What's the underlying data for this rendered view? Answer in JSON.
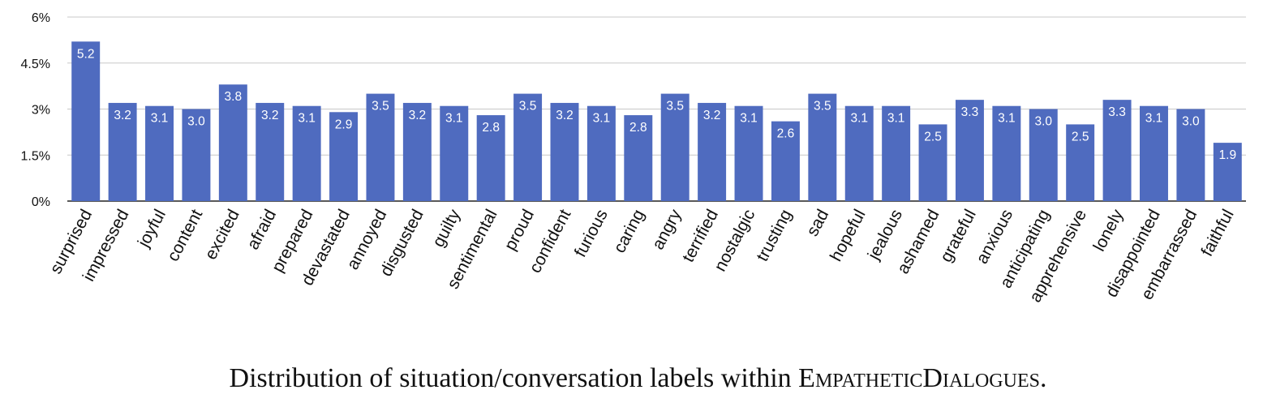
{
  "chart_data": {
    "type": "bar",
    "categories": [
      "surprised",
      "impressed",
      "joyful",
      "content",
      "excited",
      "afraid",
      "prepared",
      "devastated",
      "annoyed",
      "disgusted",
      "guilty",
      "sentimental",
      "proud",
      "confident",
      "furious",
      "caring",
      "angry",
      "terrified",
      "nostalgic",
      "trusting",
      "sad",
      "hopeful",
      "jealous",
      "ashamed",
      "grateful",
      "anxious",
      "anticipating",
      "apprehensive",
      "lonely",
      "disappointed",
      "embarrassed",
      "faithful"
    ],
    "values": [
      5.2,
      3.2,
      3.1,
      3.0,
      3.8,
      3.2,
      3.1,
      2.9,
      3.5,
      3.2,
      3.1,
      2.8,
      3.5,
      3.2,
      3.1,
      2.8,
      3.5,
      3.2,
      3.1,
      2.6,
      3.5,
      3.1,
      3.1,
      2.5,
      3.3,
      3.1,
      3.0,
      2.5,
      3.3,
      3.1,
      3.0,
      1.9
    ],
    "data_labels": [
      "5.2",
      "3.2",
      "3.1",
      "3.0",
      "3.8",
      "3.2",
      "3.1",
      "2.9",
      "3.5",
      "3.2",
      "3.1",
      "2.8",
      "3.5",
      "3.2",
      "3.1",
      "2.8",
      "3.5",
      "3.2",
      "3.1",
      "2.6",
      "3.5",
      "3.1",
      "3.1",
      "2.5",
      "3.3",
      "3.1",
      "3.0",
      "2.5",
      "3.3",
      "3.1",
      "3.0",
      "1.9"
    ],
    "ylim": [
      0,
      6
    ],
    "yticks": [
      0,
      1.5,
      3,
      4.5,
      6
    ],
    "ytick_labels": [
      "0%",
      "1.5%",
      "3%",
      "4.5%",
      "6%"
    ],
    "grid": true,
    "bar_color": "#4f6bbf"
  },
  "caption": {
    "main": "Distribution of situation/conversation labels within ",
    "dataset_part1": "Empathetic",
    "dataset_part2": "Dialogues",
    "end": "."
  }
}
